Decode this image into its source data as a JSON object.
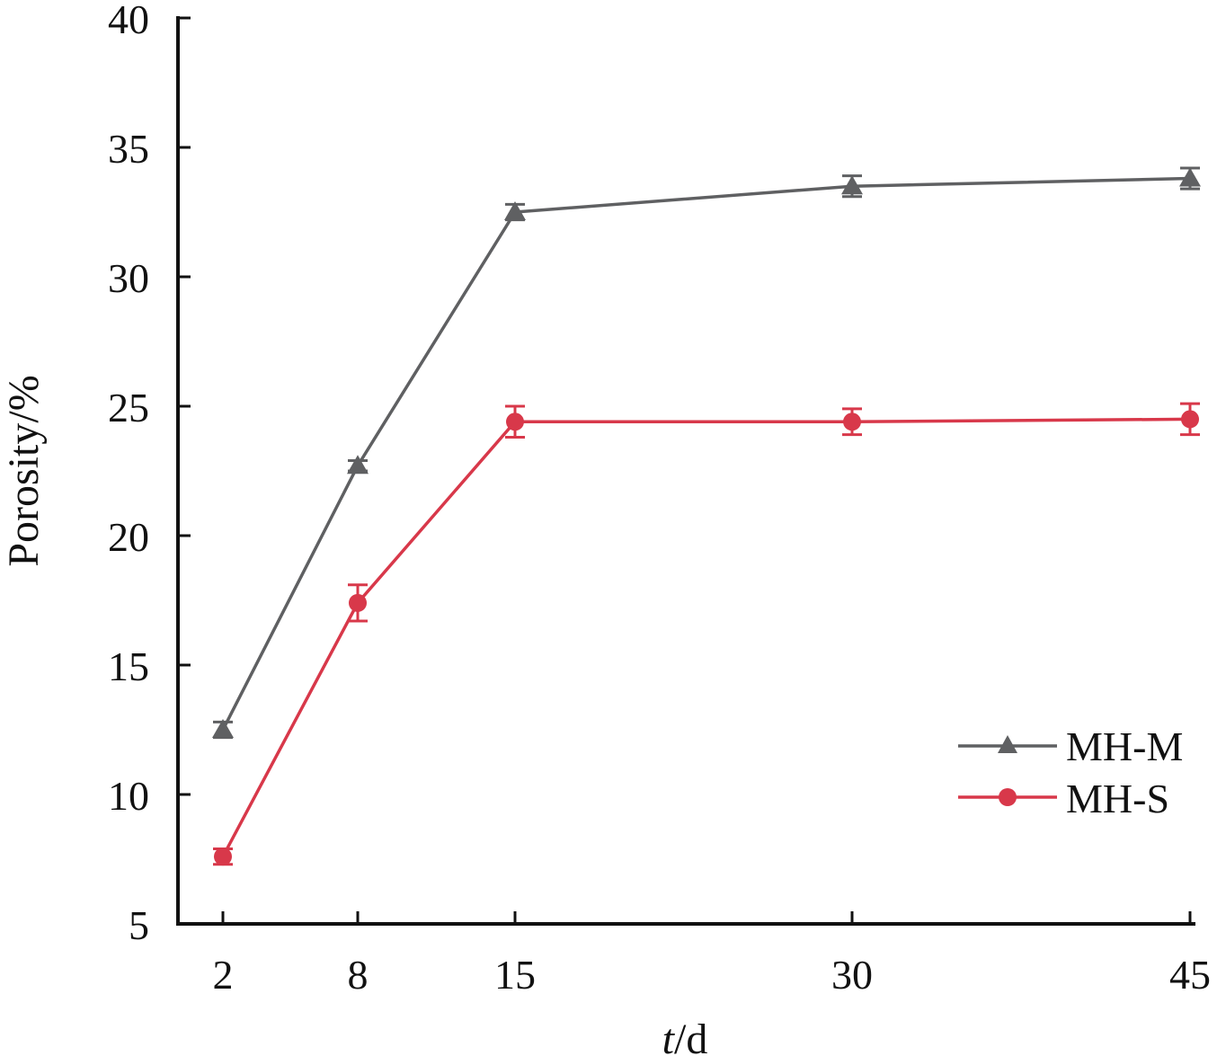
{
  "chart_data": {
    "type": "line",
    "x": [
      2,
      8,
      15,
      30,
      45
    ],
    "x_tick_labels": [
      "2",
      "8",
      "15",
      "30",
      "45"
    ],
    "xlabel_italic": "t",
    "xlabel_rest": "/d",
    "ylabel": "Porosity/%",
    "ylim": [
      5,
      40
    ],
    "y_ticks": [
      5,
      10,
      15,
      20,
      25,
      30,
      35,
      40
    ],
    "y_tick_labels": [
      "5",
      "10",
      "15",
      "20",
      "25",
      "30",
      "35",
      "40"
    ],
    "grid": false,
    "legend_position": "bottom-right",
    "series": [
      {
        "name": "MH-M",
        "marker": "triangle",
        "color": "#5f6062",
        "values": [
          12.5,
          22.7,
          32.5,
          33.5,
          33.8
        ],
        "errors": [
          0.3,
          0.2,
          0.3,
          0.4,
          0.4
        ]
      },
      {
        "name": "MH-S",
        "marker": "circle",
        "color": "#d8384a",
        "values": [
          7.6,
          17.4,
          24.4,
          24.4,
          24.5
        ],
        "errors": [
          0.3,
          0.7,
          0.6,
          0.5,
          0.6
        ]
      }
    ]
  }
}
